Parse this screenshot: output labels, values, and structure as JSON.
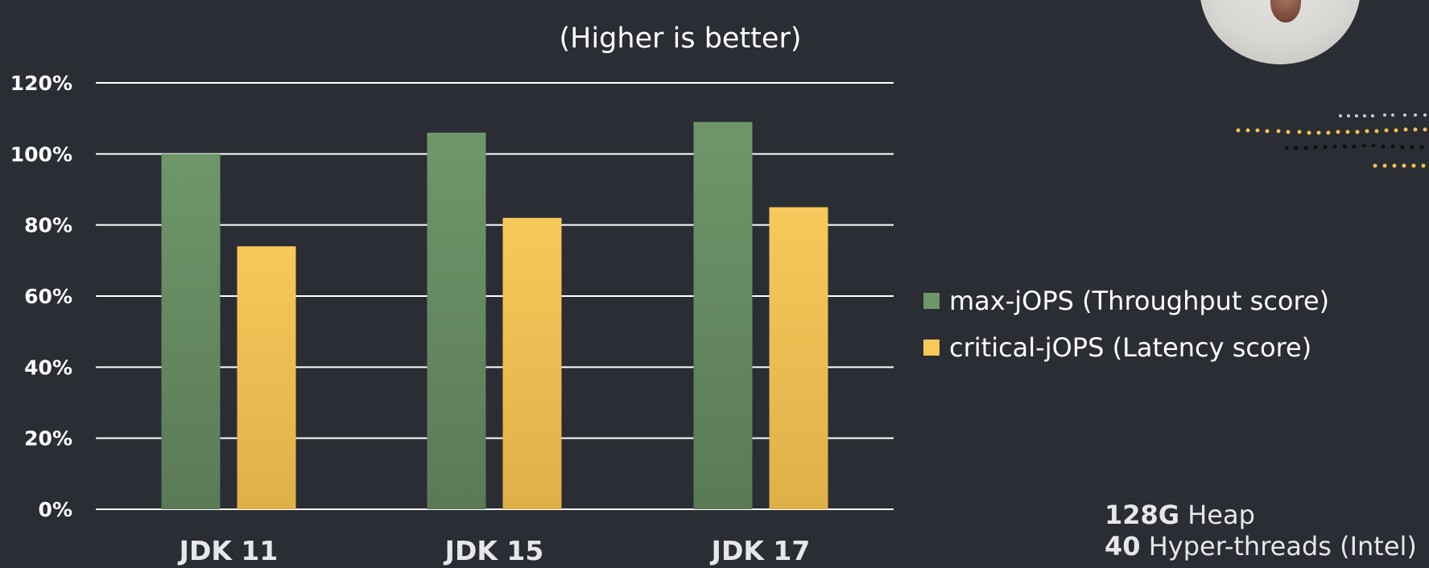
{
  "chart_data": {
    "type": "bar",
    "title": "",
    "subtitle": "(Higher is better)",
    "xlabel": "",
    "ylabel": "",
    "categories": [
      "JDK 11",
      "JDK 15",
      "JDK 17"
    ],
    "series": [
      {
        "name": "max-jOPS (Throughput score)",
        "values": [
          100,
          106,
          109
        ],
        "color": "#6f966a"
      },
      {
        "name": "critical-jOPS (Latency score)",
        "values": [
          74,
          82,
          85
        ],
        "color": "#f7c85a"
      }
    ],
    "ylim": [
      0,
      120
    ],
    "yticks": [
      0,
      20,
      40,
      60,
      80,
      100,
      120
    ],
    "ytick_labels": [
      "0%",
      "20%",
      "40%",
      "60%",
      "80%",
      "100%",
      "120%"
    ],
    "grid": true,
    "legend_position": "right"
  },
  "footer": {
    "heap_value": "128G",
    "heap_label": " Heap",
    "threads_value": "40",
    "threads_label": " Hyper-threads (Intel)"
  },
  "colors": {
    "background": "#2a2d33",
    "gridline": "#ffffff"
  },
  "icons": {
    "avatar": "presenter-webcam-icon",
    "decoration": "dot-pattern-icon"
  }
}
